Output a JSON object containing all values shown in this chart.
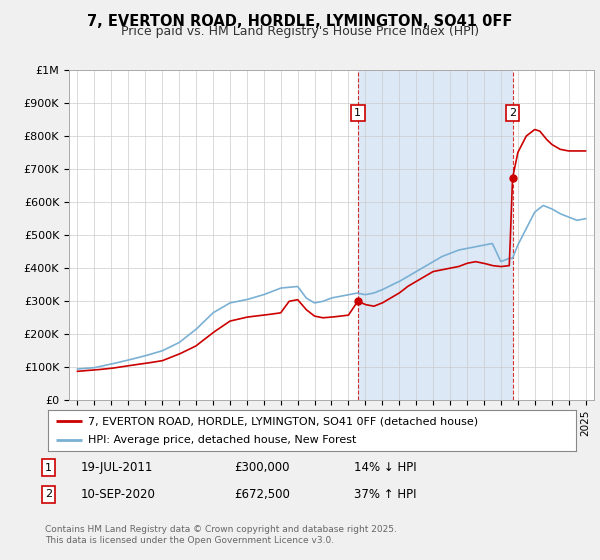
{
  "title": "7, EVERTON ROAD, HORDLE, LYMINGTON, SO41 0FF",
  "subtitle": "Price paid vs. HM Land Registry's House Price Index (HPI)",
  "footnote": "Contains HM Land Registry data © Crown copyright and database right 2025.\nThis data is licensed under the Open Government Licence v3.0.",
  "legend_line1": "7, EVERTON ROAD, HORDLE, LYMINGTON, SO41 0FF (detached house)",
  "legend_line2": "HPI: Average price, detached house, New Forest",
  "transaction1_label": "1",
  "transaction1_date": "19-JUL-2011",
  "transaction1_price": "£300,000",
  "transaction1_hpi": "14% ↓ HPI",
  "transaction2_label": "2",
  "transaction2_date": "10-SEP-2020",
  "transaction2_price": "£672,500",
  "transaction2_hpi": "37% ↑ HPI",
  "transaction1_x": 2011.55,
  "transaction1_y": 300000,
  "transaction2_x": 2020.69,
  "transaction2_y": 672500,
  "vline1_x": 2011.55,
  "vline2_x": 2020.69,
  "price_line_color": "#cc0000",
  "hpi_line_color": "#7ab0d4",
  "background_color": "#f0f0f0",
  "plot_bg_color": "#ffffff",
  "vline_color": "#cc0000",
  "shade_color": "#dce8f5",
  "ylim": [
    0,
    1000000
  ],
  "xlim": [
    1994.5,
    2025.5
  ],
  "yticks": [
    0,
    100000,
    200000,
    300000,
    400000,
    500000,
    600000,
    700000,
    800000,
    900000,
    1000000
  ],
  "ytick_labels": [
    "£0",
    "£100K",
    "£200K",
    "£300K",
    "£400K",
    "£500K",
    "£600K",
    "£700K",
    "£800K",
    "£900K",
    "£1M"
  ]
}
